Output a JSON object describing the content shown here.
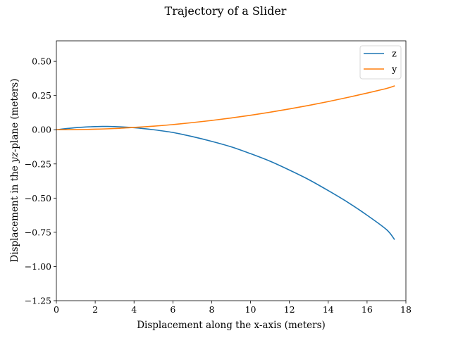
{
  "chart_data": {
    "type": "line",
    "title": "Trajectory of a Slider",
    "xlabel": "Displacement along the x-axis (meters)",
    "ylabel": "Displacement in the yz-plane (meters)",
    "ylabel_parts": {
      "before": "Displacement in the ",
      "italic": "yz",
      "after": "-plane (meters)"
    },
    "xlim": [
      0,
      18
    ],
    "ylim": [
      -1.25,
      0.65
    ],
    "x_ticks": [
      0,
      2,
      4,
      6,
      8,
      10,
      12,
      14,
      16,
      18
    ],
    "x_tick_labels": [
      "0",
      "2",
      "4",
      "6",
      "8",
      "10",
      "12",
      "14",
      "16",
      "18"
    ],
    "y_ticks": [
      0.5,
      0.25,
      0.0,
      -0.25,
      -0.5,
      -0.75,
      -1.0,
      -1.25
    ],
    "y_tick_labels": [
      "0.50",
      "0.25",
      "0.00",
      "−0.25",
      "−0.50",
      "−0.75",
      "−1.00",
      "−1.25"
    ],
    "grid": false,
    "legend_position": "top-right",
    "series": [
      {
        "name": "z",
        "color": "#1f77b4",
        "x": [
          0,
          1,
          2,
          2.5,
          3,
          4,
          5,
          6,
          7,
          8,
          9,
          10,
          11,
          12,
          13,
          14,
          15,
          16,
          17,
          17.4
        ],
        "y": [
          0,
          0.015,
          0.023,
          0.024,
          0.023,
          0.015,
          0.0,
          -0.02,
          -0.05,
          -0.085,
          -0.125,
          -0.175,
          -0.23,
          -0.295,
          -0.365,
          -0.445,
          -0.53,
          -0.625,
          -0.73,
          -0.8
        ]
      },
      {
        "name": "y",
        "color": "#ff7f0e",
        "x": [
          0,
          1,
          2,
          3,
          4,
          5,
          6,
          7,
          8,
          9,
          10,
          11,
          12,
          13,
          14,
          15,
          16,
          17,
          17.4
        ],
        "y": [
          0,
          0.001,
          0.004,
          0.009,
          0.017,
          0.026,
          0.038,
          0.052,
          0.068,
          0.086,
          0.106,
          0.128,
          0.152,
          0.178,
          0.206,
          0.236,
          0.268,
          0.302,
          0.32
        ]
      }
    ]
  }
}
